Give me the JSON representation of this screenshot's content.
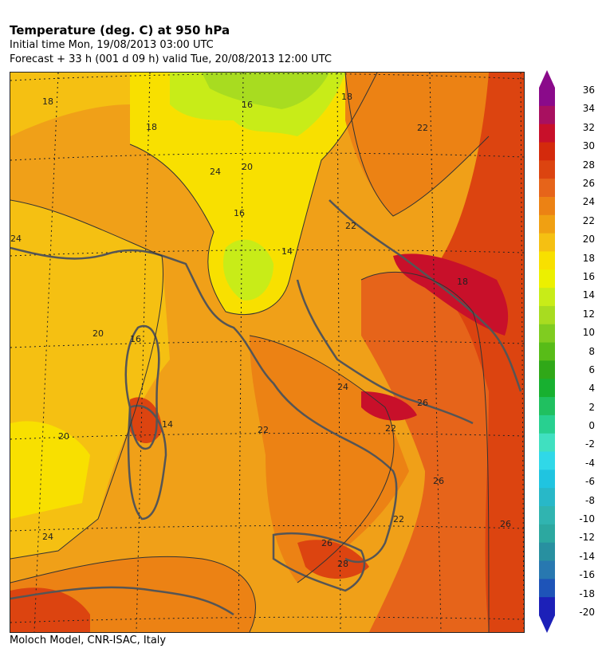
{
  "header": {
    "title": "Temperature (deg. C) at 950 hPa",
    "initial_time": "Initial time  Mon, 19/08/2013  03:00 UTC",
    "forecast": "Forecast  +  33 h  (001 d 09 h)  valid Tue, 20/08/2013 12:00 UTC"
  },
  "footer": {
    "credit": "Moloch Model, CNR-ISAC, Italy"
  },
  "map": {
    "contour_labels": [
      "18",
      "18",
      "18",
      "16",
      "14",
      "16",
      "24",
      "20",
      "22",
      "24",
      "16",
      "14",
      "20",
      "18",
      "22",
      "20",
      "22",
      "24",
      "26",
      "26",
      "28",
      "22",
      "26",
      "24",
      "26",
      "22"
    ]
  },
  "colorbar": {
    "labels": [
      "36",
      "34",
      "32",
      "30",
      "28",
      "26",
      "24",
      "22",
      "20",
      "18",
      "16",
      "14",
      "12",
      "10",
      "8",
      "6",
      "4",
      "2",
      "0",
      "-2",
      "-4",
      "-6",
      "-8",
      "-10",
      "-12",
      "-14",
      "-16",
      "-18",
      "-20"
    ],
    "colors": [
      "#8a0a8a",
      "#a81060",
      "#c8102a",
      "#d42a0c",
      "#dc4410",
      "#e6641a",
      "#ec8214",
      "#f0a012",
      "#f5c012",
      "#f8e000",
      "#ecf000",
      "#c8ec18",
      "#a8dc20",
      "#80cc20",
      "#58bc18",
      "#30a818",
      "#18b030",
      "#20c060",
      "#28d090",
      "#40e0c0",
      "#30d8e8",
      "#20c4e0",
      "#28b8c8",
      "#30b4b0",
      "#2ca8a0",
      "#2890a0",
      "#2878b0",
      "#1e54b8",
      "#1c20b8"
    ]
  }
}
